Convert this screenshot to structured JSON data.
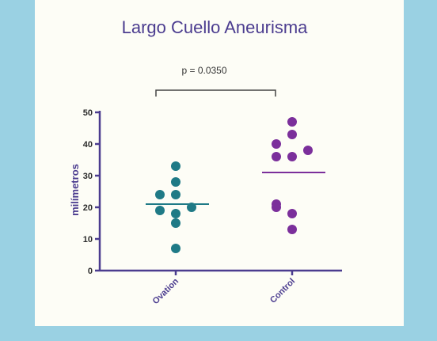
{
  "chart_data": {
    "type": "scatter",
    "title": "Largo Cuello Aneurisma",
    "ylabel": "milímetros",
    "xlabel": "",
    "ylim": [
      0,
      50
    ],
    "yticks": [
      0,
      10,
      20,
      30,
      40,
      50
    ],
    "grid": false,
    "categories": [
      "Ovation",
      "Control"
    ],
    "annotation": "p =  0.0350",
    "series": [
      {
        "color": "#1f7a86",
        "values": [
          7,
          15,
          18,
          19,
          20,
          24,
          24,
          28,
          33
        ],
        "mean": 21
      },
      {
        "color": "#7b2f9b",
        "values": [
          13,
          18,
          20,
          21,
          36,
          36,
          38,
          40,
          43,
          47
        ],
        "mean": 31
      }
    ]
  }
}
